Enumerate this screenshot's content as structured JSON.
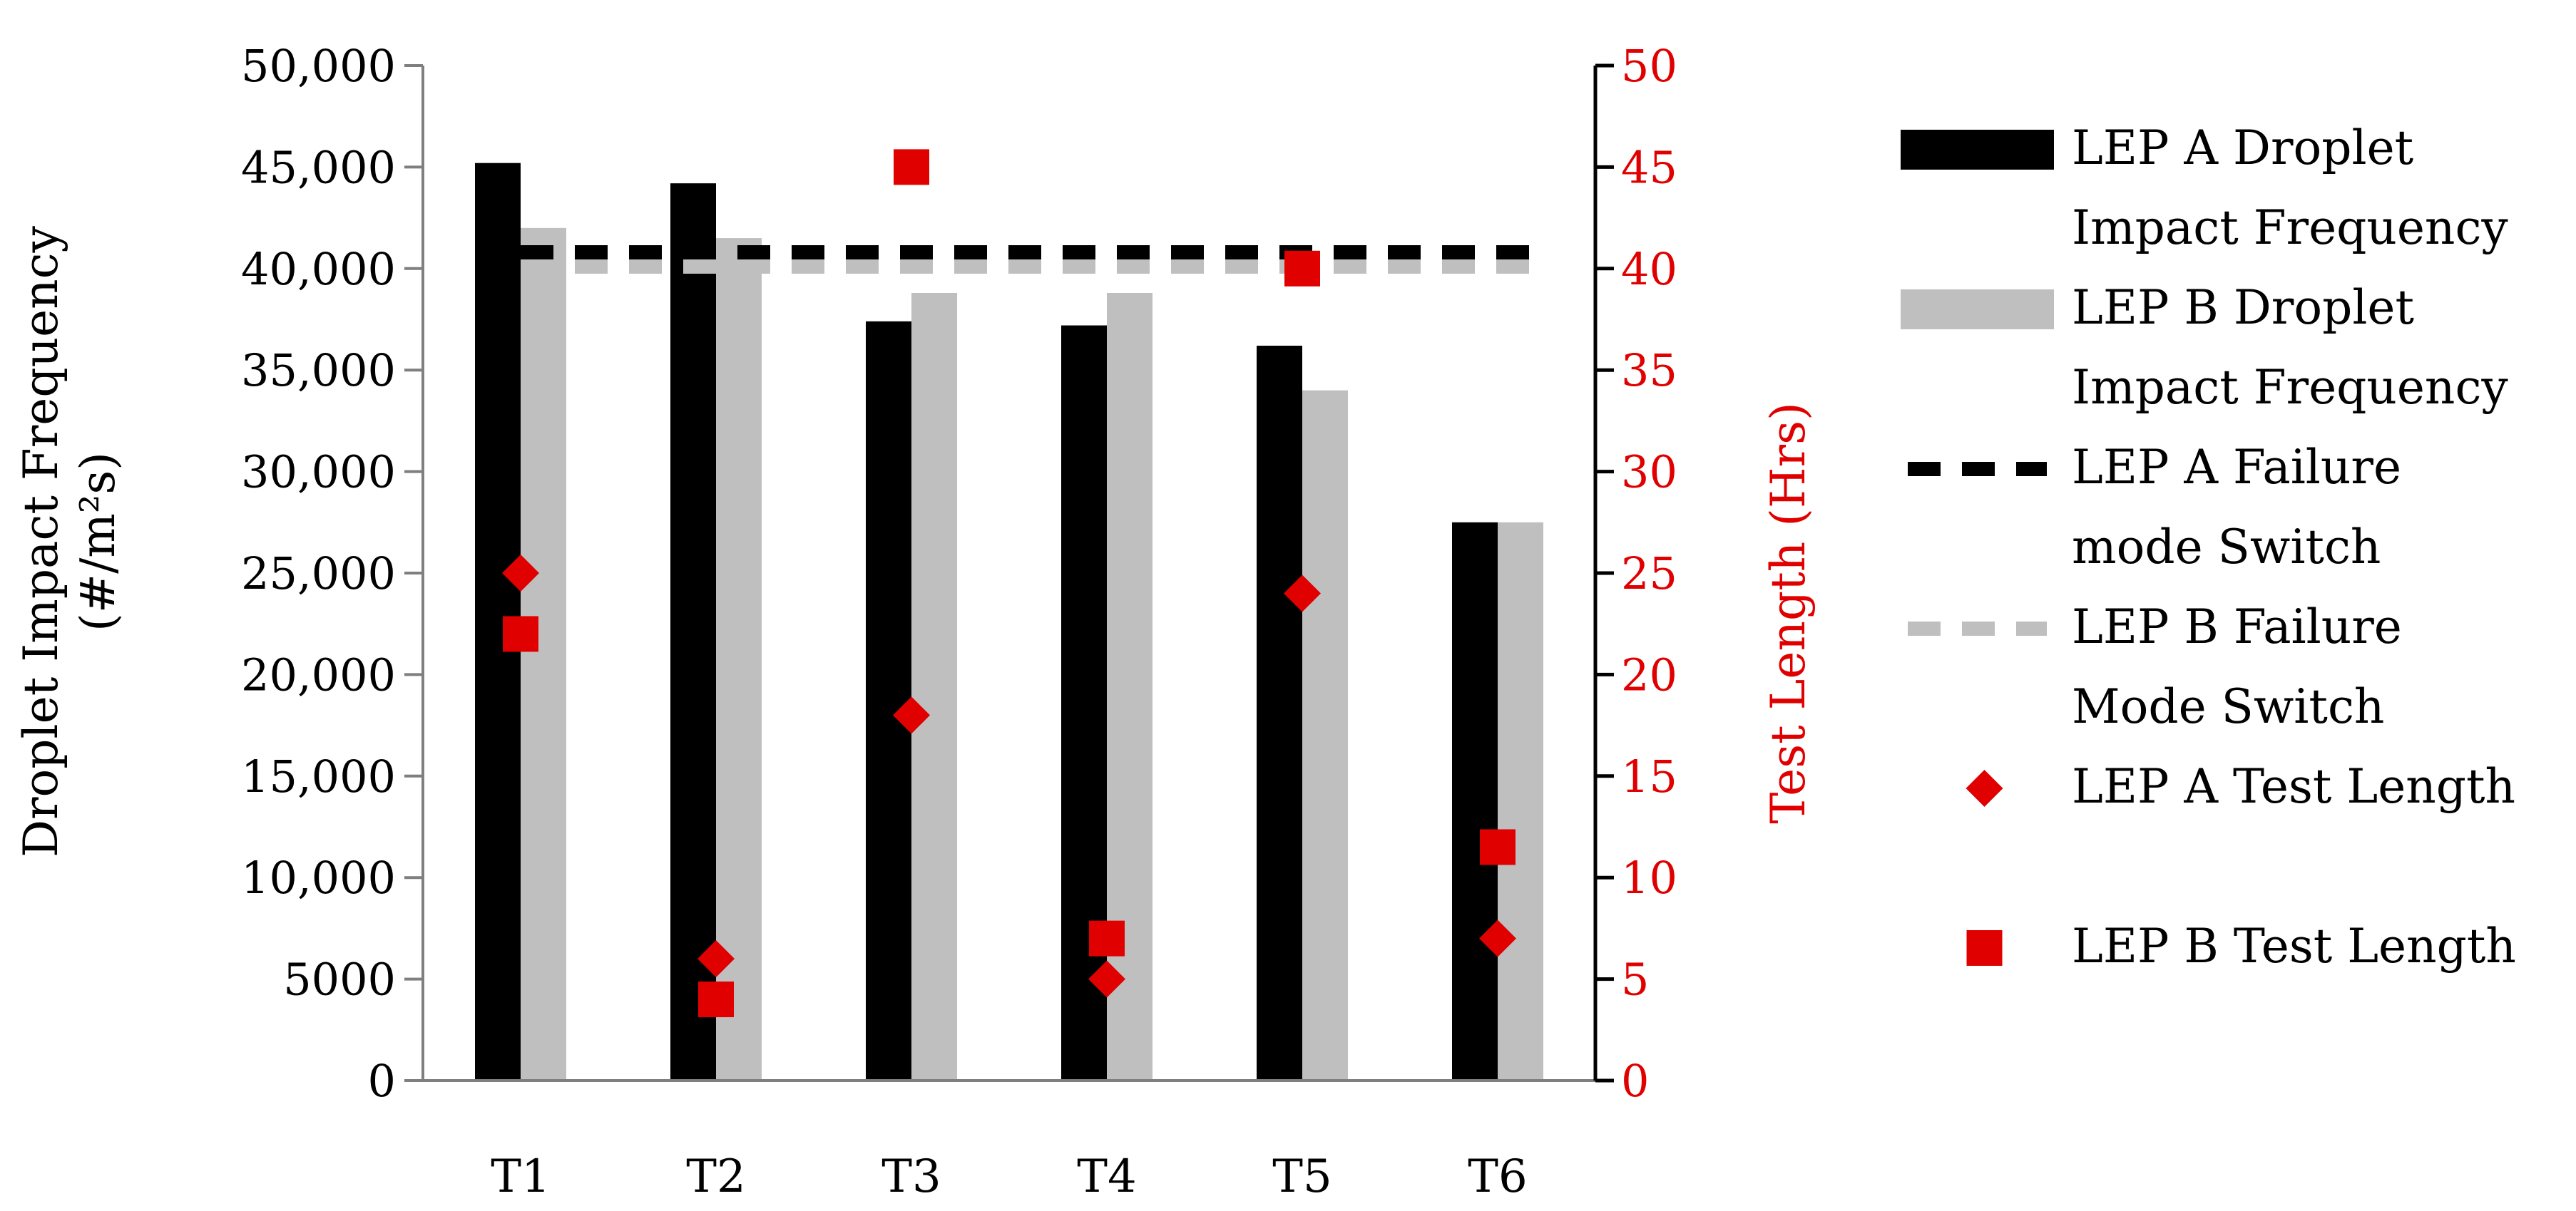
{
  "chart_data": {
    "type": "bar",
    "categories": [
      "T1",
      "T2",
      "T3",
      "T4",
      "T5",
      "T6"
    ],
    "series": [
      {
        "name": "LEP A Droplet Impact Frequency",
        "kind": "bar",
        "axis": "left",
        "color": "#000000",
        "values": [
          45200,
          44200,
          37400,
          37200,
          36200,
          27500
        ]
      },
      {
        "name": "LEP B Droplet Impact Frequency",
        "kind": "bar",
        "axis": "left",
        "color": "#bfbfbf",
        "values": [
          42000,
          41500,
          38800,
          38800,
          34000,
          27500
        ]
      },
      {
        "name": "LEP A Failure mode Switch",
        "kind": "hline",
        "axis": "left",
        "color": "#000000",
        "values": [
          40800,
          40800,
          40800,
          40800,
          40800,
          40800
        ]
      },
      {
        "name": "LEP B Failure Mode Switch",
        "kind": "hline",
        "axis": "left",
        "color": "#bfbfbf",
        "values": [
          40100,
          40100,
          40100,
          40100,
          40100,
          40100
        ]
      },
      {
        "name": "LEP A Test Length",
        "kind": "diamond",
        "axis": "right",
        "color": "#e00000",
        "values": [
          25,
          6,
          18,
          5,
          24,
          7
        ]
      },
      {
        "name": "LEP B Test Length",
        "kind": "square",
        "axis": "right",
        "color": "#e00000",
        "values": [
          22,
          4,
          45,
          7,
          40,
          11.5
        ]
      }
    ],
    "y_left": {
      "label": "Droplet Impact Frequency",
      "label_line2": "(#/m²s)",
      "range": [
        0,
        50000
      ],
      "ticks": [
        0,
        5000,
        10000,
        15000,
        20000,
        25000,
        30000,
        35000,
        40000,
        45000,
        50000
      ],
      "tick_labels": [
        "0",
        "5000",
        "10,000",
        "15,000",
        "20,000",
        "25,000",
        "30,000",
        "35,000",
        "40,000",
        "45,000",
        "50,000"
      ]
    },
    "y_right": {
      "label": "Test Length (Hrs)",
      "range": [
        0,
        50
      ],
      "ticks": [
        0,
        5,
        10,
        15,
        20,
        25,
        30,
        35,
        40,
        45,
        50
      ],
      "tick_labels": [
        "0",
        "5",
        "10",
        "15",
        "20",
        "25",
        "30",
        "35",
        "40",
        "45",
        "50"
      ],
      "color": "#e00000"
    },
    "grid": false,
    "legend": {
      "position": "right",
      "entries": [
        {
          "series": 0,
          "lines": [
            "LEP A Droplet",
            "Impact Frequency"
          ]
        },
        {
          "series": 1,
          "lines": [
            "LEP B Droplet",
            "Impact Frequency"
          ]
        },
        {
          "series": 2,
          "lines": [
            "LEP A Failure",
            "mode Switch"
          ]
        },
        {
          "series": 3,
          "lines": [
            "LEP B Failure",
            "Mode Switch"
          ]
        },
        {
          "series": 4,
          "lines": [
            "LEP A Test Length"
          ]
        },
        {
          "series": 5,
          "lines": [
            "LEP B Test Length"
          ]
        }
      ]
    }
  }
}
